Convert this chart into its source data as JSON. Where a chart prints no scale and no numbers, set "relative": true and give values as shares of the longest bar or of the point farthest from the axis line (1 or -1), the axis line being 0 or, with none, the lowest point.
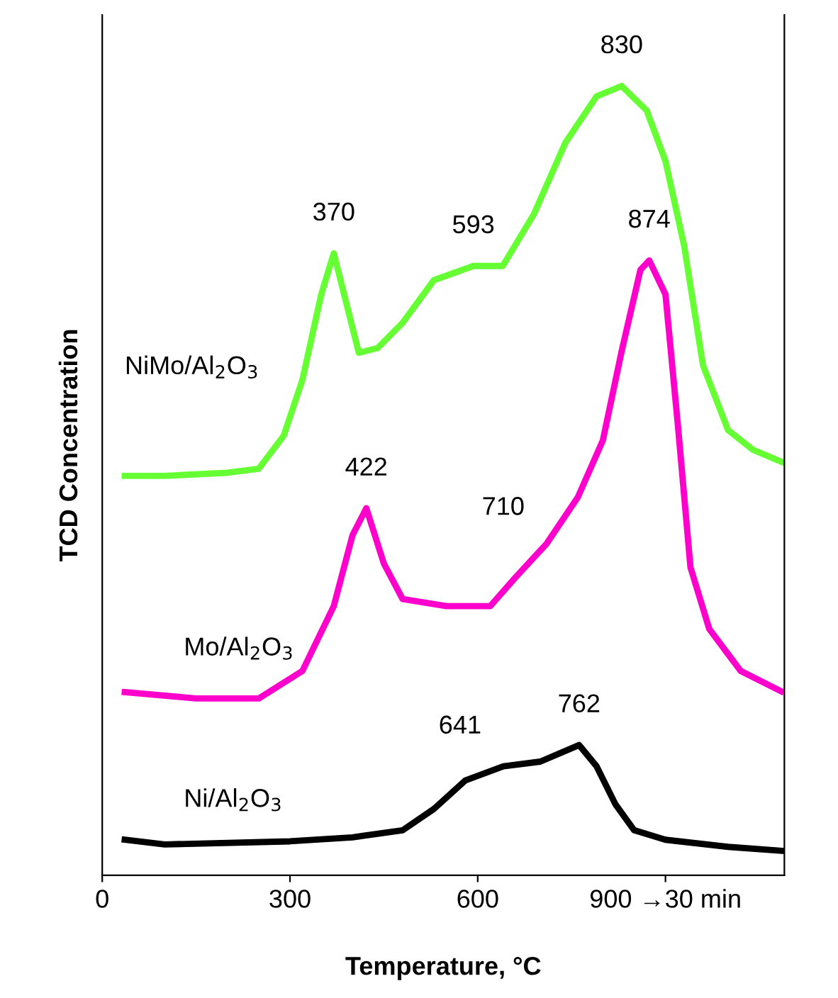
{
  "chart_data": {
    "type": "line",
    "relative": true,
    "xlabel": "Temperature, °C",
    "ylabel": "TCD Concentration",
    "xlim": [
      0,
      1090
    ],
    "xticks": [
      0,
      300,
      600,
      {
        "value": 900,
        "label": "900 →30 min"
      }
    ],
    "grid": false,
    "legend": false,
    "marker": "none",
    "line_style": "solid",
    "series": [
      {
        "name": "NiMo/Al$_{2}$O$_{3}$",
        "color": "#66ff33",
        "x": [
          36,
          100,
          200,
          250,
          290,
          320,
          350,
          370,
          390,
          410,
          440,
          480,
          530,
          593,
          640,
          690,
          740,
          790,
          830,
          870,
          900,
          930,
          960,
          1000,
          1040,
          1085
        ],
        "values": [
          0.506,
          0.506,
          0.51,
          0.515,
          0.557,
          0.628,
          0.736,
          0.788,
          0.725,
          0.662,
          0.668,
          0.7,
          0.754,
          0.772,
          0.772,
          0.838,
          0.928,
          0.987,
          1,
          0.969,
          0.905,
          0.797,
          0.646,
          0.564,
          0.539,
          0.524
        ]
      },
      {
        "name": "Mo/Al$_{2}$O$_{3}$",
        "color": "#ff00cc",
        "x": [
          36,
          150,
          250,
          320,
          370,
          400,
          422,
          450,
          480,
          550,
          620,
          660,
          710,
          760,
          800,
          830,
          860,
          874,
          900,
          920,
          940,
          970,
          1020,
          1085
        ],
        "values": [
          0.232,
          0.224,
          0.224,
          0.259,
          0.341,
          0.431,
          0.465,
          0.395,
          0.35,
          0.341,
          0.341,
          0.377,
          0.42,
          0.479,
          0.551,
          0.664,
          0.767,
          0.779,
          0.736,
          0.569,
          0.39,
          0.312,
          0.259,
          0.233
        ]
      },
      {
        "name": "Ni/Al$_{2}$O$_{3}$",
        "color": "#000000",
        "x": [
          36,
          100,
          300,
          400,
          480,
          530,
          580,
          641,
          700,
          762,
          790,
          820,
          850,
          900,
          1000,
          1085
        ],
        "values": [
          0.045,
          0.039,
          0.043,
          0.048,
          0.057,
          0.084,
          0.12,
          0.138,
          0.144,
          0.165,
          0.138,
          0.09,
          0.057,
          0.045,
          0.036,
          0.031
        ]
      }
    ],
    "annotations": [
      {
        "text": "370",
        "x": 370,
        "y": 0.788
      },
      {
        "text": "593",
        "x": 593,
        "y": 0.772
      },
      {
        "text": "830",
        "x": 830,
        "y": 1
      },
      {
        "text": "422",
        "x": 422,
        "y": 0.465
      },
      {
        "text": "710",
        "x": 710,
        "y": 0.42
      },
      {
        "text": "874",
        "x": 874,
        "y": 0.779
      },
      {
        "text": "641",
        "x": 641,
        "y": 0.138
      },
      {
        "text": "762",
        "x": 762,
        "y": 0.165
      }
    ]
  }
}
